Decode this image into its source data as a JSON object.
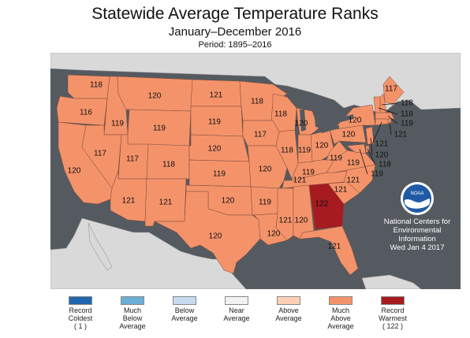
{
  "header": {
    "title": "Statewide Average Temperature Ranks",
    "subtitle": "January–December 2016",
    "period": "Period: 1895–2016"
  },
  "credit": {
    "line1": "National Centers for",
    "line2": "Environmental",
    "line3": "Information",
    "line4": "Wed Jan  4 2017"
  },
  "logo": {
    "text": "NOAA"
  },
  "colors": {
    "ocean": "#555a60",
    "land_other": "#d9d9d9",
    "much_above": "#f4936a",
    "record_warmest": "#a51b20",
    "state_border": "#7a4a3a"
  },
  "legend": [
    {
      "line1": "Record",
      "line2": "Coldest",
      "line3": "( 1 )",
      "color": "#2166ac"
    },
    {
      "line1": "Much",
      "line2": "Below",
      "line3": "Average",
      "color": "#6baed6"
    },
    {
      "line1": "Below",
      "line2": "Average",
      "line3": "",
      "color": "#c6dbef"
    },
    {
      "line1": "Near",
      "line2": "Average",
      "line3": "",
      "color": "#f2f2f2"
    },
    {
      "line1": "Above",
      "line2": "Average",
      "line3": "",
      "color": "#fdd0b4"
    },
    {
      "line1": "Much",
      "line2": "Above",
      "line3": "Average",
      "color": "#f4936a"
    },
    {
      "line1": "Record",
      "line2": "Warmest",
      "line3": "( 122 )",
      "color": "#a51b20"
    }
  ],
  "ranks": {
    "WA": "118",
    "OR": "116",
    "CA": "120",
    "ID": "119",
    "NV": "117",
    "MT": "120",
    "WY": "119",
    "UT": "117",
    "AZ": "121",
    "CO": "118",
    "NM": "121",
    "ND": "121",
    "SD": "119",
    "NE": "120",
    "KS": "119",
    "OK": "120",
    "TX": "120",
    "MN": "118",
    "IA": "117",
    "MO": "120",
    "AR": "119",
    "LA": "120",
    "WI": "118",
    "IL": "118",
    "MI": "120",
    "IN": "119",
    "OH": "120",
    "KY": "119",
    "TN": "121",
    "MS": "121",
    "AL": "120",
    "GA": "122",
    "FL": "121",
    "SC": "121",
    "NC": "121",
    "VA": "119",
    "WV": "119",
    "PA": "120",
    "NY": "120",
    "ME": "117",
    "NH": "118",
    "VT": "118",
    "MA": "119",
    "RI": "121",
    "CT": "121",
    "NJ": "120",
    "DE": "118",
    "MD": "119"
  }
}
